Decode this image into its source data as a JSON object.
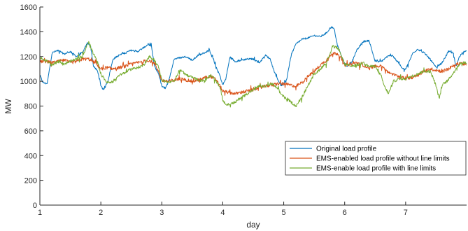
{
  "chart_data": {
    "type": "line",
    "title": "",
    "xlabel": "day",
    "ylabel": "MW",
    "xlim": [
      1,
      8
    ],
    "ylim": [
      0,
      1600
    ],
    "xticks": [
      1,
      2,
      3,
      4,
      5,
      6,
      7
    ],
    "yticks": [
      0,
      200,
      400,
      600,
      800,
      1000,
      1200,
      1400,
      1600
    ],
    "grid": false,
    "legend_position": "lower-right",
    "series": [
      {
        "name": "Original load profile",
        "color": "#0072BD",
        "x": [
          1.0,
          1.05,
          1.12,
          1.2,
          1.3,
          1.4,
          1.5,
          1.6,
          1.7,
          1.78,
          1.83,
          1.88,
          1.95,
          2.0,
          2.05,
          2.12,
          2.2,
          2.3,
          2.4,
          2.5,
          2.6,
          2.7,
          2.78,
          2.83,
          2.88,
          2.95,
          3.0,
          3.05,
          3.12,
          3.2,
          3.3,
          3.4,
          3.5,
          3.6,
          3.7,
          3.78,
          3.83,
          3.88,
          3.95,
          4.0,
          4.05,
          4.12,
          4.2,
          4.3,
          4.4,
          4.5,
          4.6,
          4.7,
          4.78,
          4.83,
          4.88,
          4.95,
          5.0,
          5.05,
          5.12,
          5.2,
          5.3,
          5.4,
          5.5,
          5.6,
          5.7,
          5.78,
          5.83,
          5.88,
          5.95,
          6.0,
          6.05,
          6.12,
          6.2,
          6.3,
          6.4,
          6.5,
          6.6,
          6.7,
          6.78,
          6.83,
          6.88,
          6.95,
          7.0,
          7.05,
          7.12,
          7.2,
          7.3,
          7.4,
          7.5,
          7.6,
          7.7,
          7.78,
          7.83,
          7.88,
          7.95,
          8.0
        ],
        "y": [
          1050,
          990,
          980,
          1230,
          1250,
          1220,
          1240,
          1200,
          1230,
          1310,
          1290,
          1120,
          1080,
          960,
          930,
          1010,
          1180,
          1210,
          1230,
          1250,
          1240,
          1270,
          1300,
          1280,
          1120,
          1060,
          960,
          940,
          1010,
          1180,
          1190,
          1200,
          1170,
          1210,
          1230,
          1250,
          1200,
          1130,
          1050,
          970,
          1020,
          1200,
          1160,
          1170,
          1180,
          1180,
          1150,
          1210,
          1180,
          1100,
          1040,
          970,
          970,
          1020,
          1210,
          1300,
          1340,
          1350,
          1370,
          1360,
          1390,
          1440,
          1420,
          1290,
          1200,
          1140,
          1120,
          1160,
          1250,
          1320,
          1330,
          1160,
          1160,
          1200,
          1210,
          1180,
          1150,
          1100,
          1100,
          1150,
          1230,
          1260,
          1230,
          1180,
          1110,
          1150,
          1240,
          1230,
          1120,
          1200,
          1240,
          1240
        ]
      },
      {
        "name": "EMS-enabled load profile without line limits",
        "color": "#D95319",
        "x": [
          1.0,
          1.1,
          1.2,
          1.3,
          1.4,
          1.5,
          1.6,
          1.7,
          1.8,
          1.9,
          2.0,
          2.1,
          2.2,
          2.3,
          2.4,
          2.5,
          2.6,
          2.7,
          2.8,
          2.9,
          3.0,
          3.1,
          3.2,
          3.3,
          3.4,
          3.5,
          3.6,
          3.7,
          3.8,
          3.9,
          4.0,
          4.1,
          4.2,
          4.3,
          4.4,
          4.5,
          4.6,
          4.7,
          4.8,
          4.9,
          5.0,
          5.1,
          5.2,
          5.3,
          5.4,
          5.5,
          5.6,
          5.7,
          5.8,
          5.9,
          6.0,
          6.1,
          6.2,
          6.3,
          6.4,
          6.5,
          6.6,
          6.7,
          6.8,
          6.9,
          7.0,
          7.1,
          7.2,
          7.3,
          7.4,
          7.5,
          7.6,
          7.7,
          7.8,
          7.9,
          8.0
        ],
        "y": [
          1160,
          1160,
          1150,
          1160,
          1170,
          1150,
          1160,
          1180,
          1180,
          1150,
          1100,
          1110,
          1100,
          1110,
          1120,
          1140,
          1150,
          1160,
          1170,
          1130,
          1010,
          1000,
          1010,
          1020,
          1010,
          1000,
          1010,
          1030,
          1040,
          1010,
          920,
          910,
          900,
          910,
          920,
          930,
          950,
          960,
          970,
          980,
          980,
          970,
          960,
          990,
          1040,
          1080,
          1130,
          1170,
          1230,
          1220,
          1130,
          1140,
          1150,
          1130,
          1110,
          1120,
          1130,
          1080,
          1050,
          1040,
          1020,
          1030,
          1050,
          1080,
          1100,
          1090,
          1080,
          1100,
          1130,
          1150,
          1130
        ]
      },
      {
        "name": "EMS-enable load profile with line limits",
        "color": "#77AC30",
        "x": [
          1.0,
          1.1,
          1.2,
          1.3,
          1.4,
          1.5,
          1.6,
          1.7,
          1.8,
          1.88,
          1.95,
          2.0,
          2.1,
          2.2,
          2.3,
          2.4,
          2.5,
          2.6,
          2.7,
          2.8,
          2.88,
          2.95,
          3.0,
          3.1,
          3.2,
          3.3,
          3.4,
          3.5,
          3.6,
          3.7,
          3.8,
          3.88,
          3.95,
          4.0,
          4.05,
          4.1,
          4.2,
          4.3,
          4.4,
          4.5,
          4.6,
          4.7,
          4.8,
          4.88,
          4.95,
          5.0,
          5.1,
          5.2,
          5.3,
          5.4,
          5.5,
          5.6,
          5.7,
          5.8,
          5.88,
          5.95,
          6.0,
          6.1,
          6.2,
          6.3,
          6.4,
          6.5,
          6.6,
          6.65,
          6.72,
          6.8,
          6.9,
          7.0,
          7.1,
          7.2,
          7.3,
          7.4,
          7.45,
          7.5,
          7.55,
          7.6,
          7.7,
          7.8,
          7.9,
          8.0
        ],
        "y": [
          1190,
          1170,
          1130,
          1160,
          1140,
          1160,
          1180,
          1200,
          1320,
          1220,
          1150,
          1060,
          990,
          1000,
          1050,
          1070,
          1100,
          1110,
          1130,
          1200,
          1170,
          1110,
          1010,
          990,
          1000,
          1100,
          1050,
          1030,
          1010,
          1000,
          1050,
          1010,
          960,
          850,
          820,
          810,
          830,
          870,
          900,
          930,
          960,
          960,
          980,
          950,
          900,
          880,
          840,
          800,
          870,
          970,
          1050,
          1100,
          1150,
          1280,
          1270,
          1200,
          1140,
          1120,
          1130,
          1150,
          1120,
          1120,
          1040,
          960,
          900,
          1000,
          1020,
          1020,
          1040,
          1060,
          1080,
          1080,
          1030,
          960,
          860,
          970,
          1010,
          1080,
          1150,
          1150
        ]
      }
    ]
  }
}
